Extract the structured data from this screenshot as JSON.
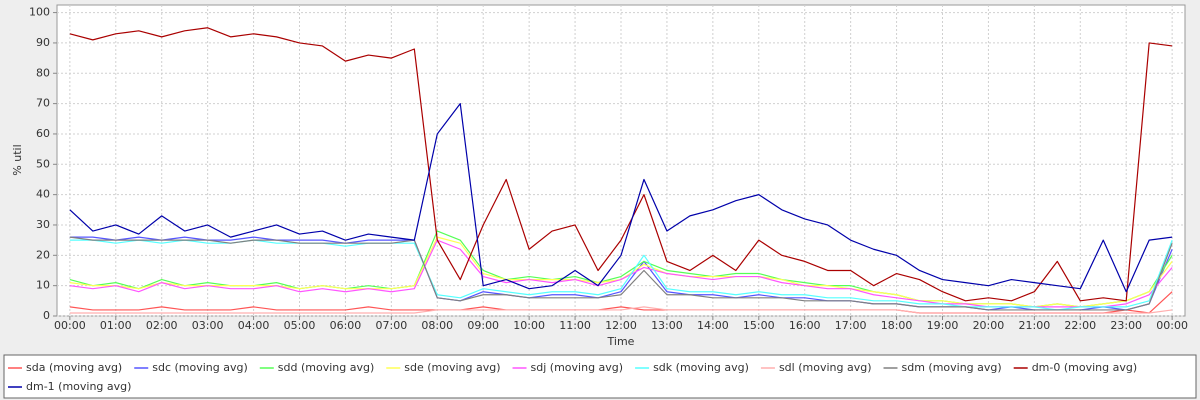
{
  "chart_data": {
    "type": "line",
    "x_label": "Time",
    "y_label": "% util",
    "x": [
      0,
      0.5,
      1,
      1.5,
      2,
      2.5,
      3,
      3.5,
      4,
      4.5,
      5,
      5.5,
      6,
      6.5,
      7,
      7.5,
      8,
      8.5,
      9,
      9.5,
      10,
      10.5,
      11,
      11.5,
      12,
      12.5,
      13,
      13.5,
      14,
      14.5,
      15,
      15.5,
      16,
      16.5,
      17,
      17.5,
      18,
      18.5,
      19,
      19.5,
      20,
      20.5,
      21,
      21.5,
      22,
      22.5,
      23,
      23.5,
      24
    ],
    "xlim": [
      -0.28,
      24.28
    ],
    "xticks": [
      {
        "value": 0,
        "label": "00:00"
      },
      {
        "value": 1,
        "label": "01:00"
      },
      {
        "value": 2,
        "label": "02:00"
      },
      {
        "value": 3,
        "label": "03:00"
      },
      {
        "value": 4,
        "label": "04:00"
      },
      {
        "value": 5,
        "label": "05:00"
      },
      {
        "value": 6,
        "label": "06:00"
      },
      {
        "value": 7,
        "label": "07:00"
      },
      {
        "value": 8,
        "label": "08:00"
      },
      {
        "value": 9,
        "label": "09:00"
      },
      {
        "value": 10,
        "label": "10:00"
      },
      {
        "value": 11,
        "label": "11:00"
      },
      {
        "value": 12,
        "label": "12:00"
      },
      {
        "value": 13,
        "label": "13:00"
      },
      {
        "value": 14,
        "label": "14:00"
      },
      {
        "value": 15,
        "label": "15:00"
      },
      {
        "value": 16,
        "label": "16:00"
      },
      {
        "value": 17,
        "label": "17:00"
      },
      {
        "value": 18,
        "label": "18:00"
      },
      {
        "value": 19,
        "label": "19:00"
      },
      {
        "value": 20,
        "label": "20:00"
      },
      {
        "value": 21,
        "label": "21:00"
      },
      {
        "value": 22,
        "label": "22:00"
      },
      {
        "value": 23,
        "label": "23:00"
      },
      {
        "value": 24,
        "label": "00:00"
      }
    ],
    "ylim": [
      0,
      102.5
    ],
    "yticks": [
      0,
      10,
      20,
      30,
      40,
      50,
      60,
      70,
      80,
      90,
      100
    ],
    "grid": true,
    "legend": "bottom",
    "series": [
      {
        "name": "sda (moving avg)",
        "color": "#ff5555",
        "values": [
          3,
          2,
          2,
          2,
          3,
          2,
          2,
          2,
          3,
          2,
          2,
          2,
          2,
          3,
          2,
          2,
          2,
          2,
          3,
          2,
          2,
          2,
          2,
          2,
          3,
          2,
          2,
          2,
          2,
          2,
          2,
          2,
          2,
          2,
          2,
          2,
          2,
          1,
          1,
          1,
          1,
          1,
          1,
          1,
          1,
          1,
          2,
          1,
          8
        ]
      },
      {
        "name": "sdc (moving avg)",
        "color": "#5555ff",
        "values": [
          26,
          26,
          25,
          26,
          25,
          26,
          25,
          25,
          26,
          25,
          25,
          25,
          24,
          25,
          25,
          25,
          6,
          5,
          8,
          7,
          6,
          7,
          7,
          6,
          8,
          18,
          8,
          7,
          7,
          6,
          7,
          6,
          6,
          5,
          5,
          4,
          4,
          3,
          3,
          3,
          2,
          3,
          2,
          2,
          2,
          3,
          2,
          4,
          22
        ]
      },
      {
        "name": "sdd (moving avg)",
        "color": "#55ff55",
        "values": [
          12,
          10,
          11,
          9,
          12,
          10,
          11,
          10,
          10,
          11,
          9,
          10,
          9,
          10,
          9,
          10,
          28,
          25,
          15,
          12,
          13,
          12,
          13,
          11,
          13,
          18,
          15,
          14,
          13,
          14,
          14,
          12,
          11,
          10,
          10,
          8,
          7,
          5,
          5,
          4,
          4,
          4,
          3,
          4,
          3,
          4,
          5,
          8,
          20
        ]
      },
      {
        "name": "sde (moving avg)",
        "color": "#ffff55",
        "values": [
          11,
          10,
          10,
          9,
          11,
          10,
          10,
          10,
          10,
          10,
          9,
          10,
          9,
          9,
          9,
          10,
          26,
          24,
          14,
          12,
          12,
          12,
          12,
          11,
          12,
          17,
          14,
          13,
          13,
          13,
          13,
          12,
          10,
          10,
          9,
          8,
          7,
          5,
          5,
          4,
          4,
          4,
          3,
          4,
          3,
          4,
          5,
          8,
          18
        ]
      },
      {
        "name": "sdj (moving avg)",
        "color": "#ff55ff",
        "values": [
          10,
          9,
          10,
          8,
          11,
          9,
          10,
          9,
          9,
          10,
          8,
          9,
          8,
          9,
          8,
          9,
          25,
          22,
          13,
          11,
          12,
          11,
          12,
          10,
          12,
          16,
          14,
          13,
          12,
          13,
          13,
          11,
          10,
          9,
          9,
          7,
          6,
          5,
          4,
          4,
          3,
          3,
          3,
          3,
          3,
          3,
          4,
          7,
          16
        ]
      },
      {
        "name": "sdk (moving avg)",
        "color": "#55ffff",
        "values": [
          25,
          25,
          24,
          25,
          24,
          25,
          24,
          24,
          25,
          24,
          24,
          24,
          23,
          24,
          24,
          24,
          7,
          6,
          9,
          8,
          7,
          8,
          8,
          7,
          9,
          20,
          9,
          8,
          8,
          7,
          8,
          7,
          7,
          6,
          6,
          5,
          5,
          4,
          4,
          3,
          3,
          3,
          3,
          2,
          3,
          3,
          3,
          5,
          25
        ]
      },
      {
        "name": "sdl (moving avg)",
        "color": "#ffafaf",
        "values": [
          1,
          1,
          1,
          1,
          1,
          1,
          1,
          1,
          1,
          1,
          1,
          1,
          1,
          1,
          1,
          1,
          2,
          2,
          2,
          2,
          2,
          2,
          2,
          2,
          2,
          3,
          2,
          2,
          2,
          2,
          2,
          2,
          2,
          2,
          2,
          2,
          2,
          1,
          1,
          1,
          1,
          1,
          1,
          1,
          1,
          1,
          1,
          1,
          2
        ]
      },
      {
        "name": "sdm (moving avg)",
        "color": "#808080",
        "values": [
          26,
          25,
          25,
          25,
          25,
          25,
          25,
          24,
          25,
          25,
          24,
          24,
          24,
          24,
          24,
          25,
          6,
          5,
          7,
          7,
          6,
          6,
          6,
          6,
          7,
          15,
          7,
          7,
          6,
          6,
          6,
          6,
          5,
          5,
          5,
          4,
          4,
          3,
          3,
          3,
          2,
          2,
          2,
          2,
          2,
          2,
          2,
          4,
          24
        ]
      },
      {
        "name": "dm-0 (moving avg)",
        "color": "#aa0000",
        "values": [
          93,
          91,
          93,
          94,
          92,
          94,
          95,
          92,
          93,
          92,
          90,
          89,
          84,
          86,
          85,
          88,
          25,
          12,
          30,
          45,
          22,
          28,
          30,
          15,
          25,
          40,
          18,
          15,
          20,
          15,
          25,
          20,
          18,
          15,
          15,
          10,
          14,
          12,
          8,
          5,
          6,
          5,
          8,
          18,
          5,
          6,
          5,
          90,
          89
        ]
      },
      {
        "name": "dm-1 (moving avg)",
        "color": "#0000aa",
        "values": [
          35,
          28,
          30,
          27,
          33,
          28,
          30,
          26,
          28,
          30,
          27,
          28,
          25,
          27,
          26,
          25,
          60,
          70,
          10,
          12,
          9,
          10,
          15,
          10,
          20,
          45,
          28,
          33,
          35,
          38,
          40,
          35,
          32,
          30,
          25,
          22,
          20,
          15,
          12,
          11,
          10,
          12,
          11,
          10,
          9,
          25,
          8,
          25,
          26
        ]
      }
    ]
  }
}
